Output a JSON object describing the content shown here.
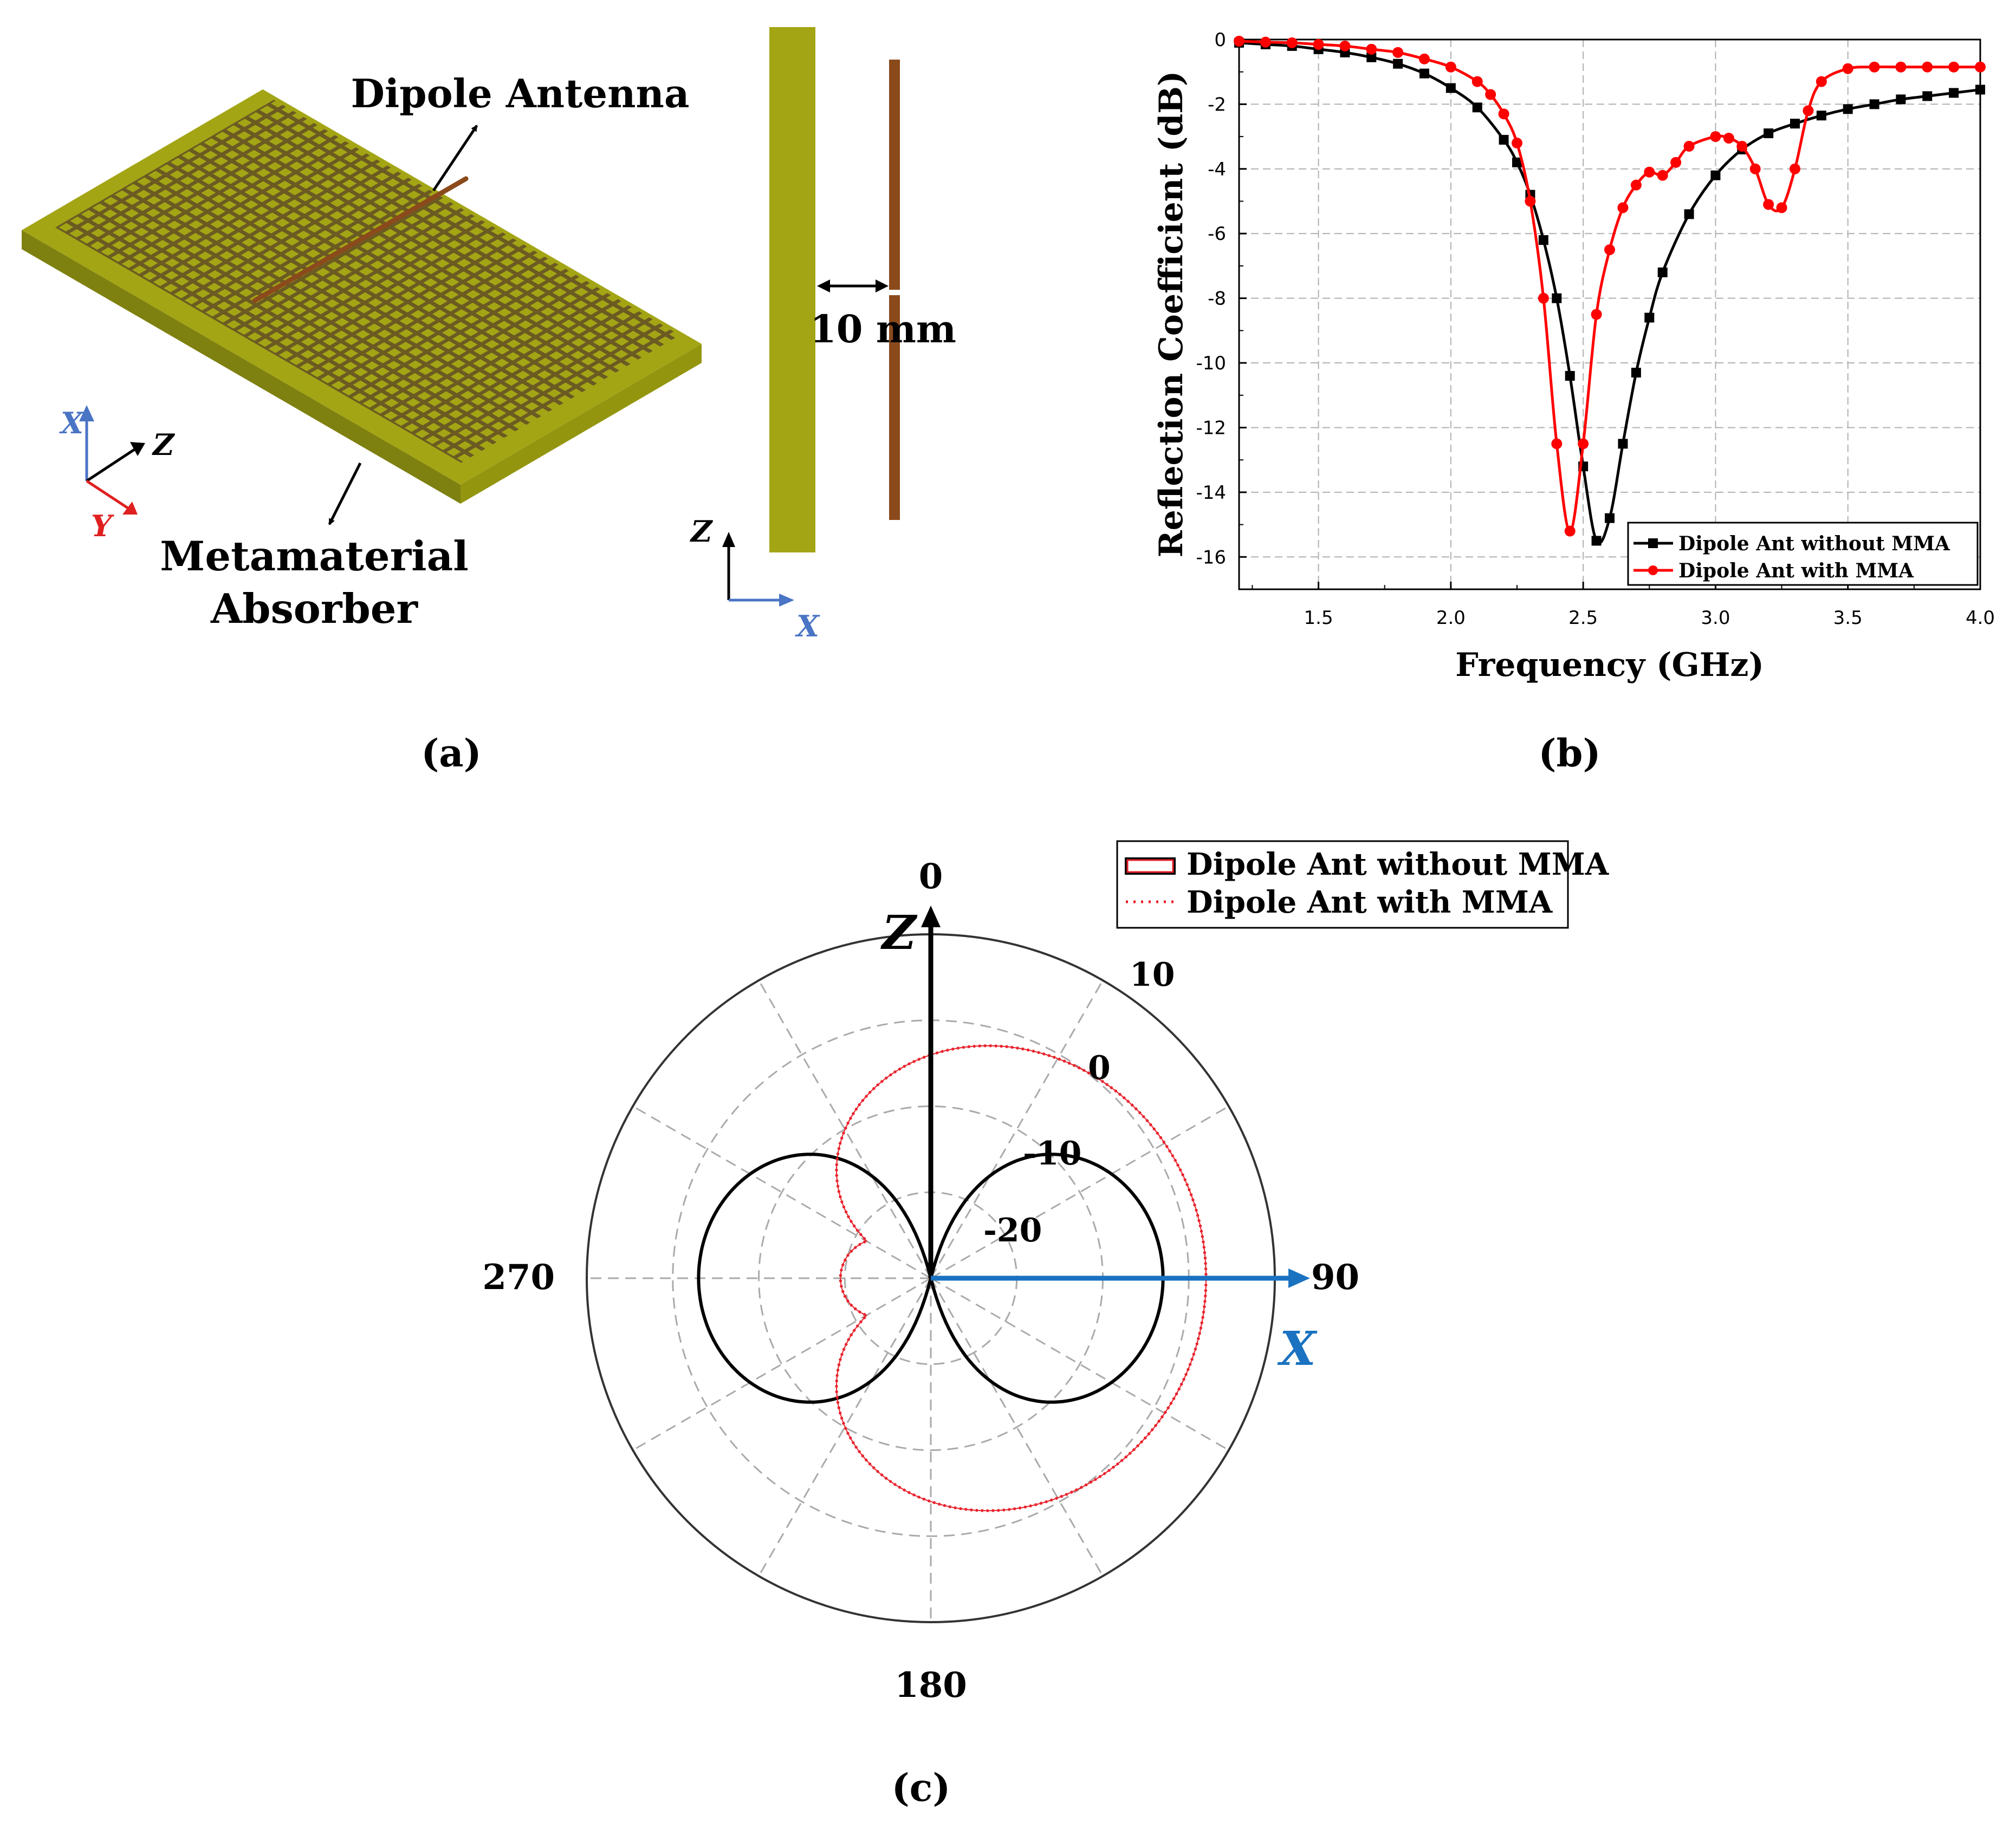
{
  "panel_a": {
    "caption": "(a)",
    "label_dipole": "Dipole Antenna",
    "label_mma_line1": "Metamaterial",
    "label_mma_line2": "Absorber",
    "gap_label": "10 mm",
    "axes_3d": {
      "x": "X",
      "z": "Z",
      "y": "Y"
    },
    "axes_side": {
      "z": "Z",
      "x": "X"
    },
    "colors": {
      "absorber": "#a3a515",
      "absorber_dark": "#7e800f",
      "cell": "#6b5a22",
      "dipole": "#8b4a1c",
      "axis_blue": "#4a74c4",
      "axis_red": "#e02020"
    }
  },
  "panel_b": {
    "caption": "(b)",
    "chart_data": {
      "type": "line",
      "xlabel": "Frequency (GHz)",
      "ylabel": "Reflection Coefficient (dB)",
      "xlim": [
        1.2,
        4.0
      ],
      "ylim": [
        -17,
        0
      ],
      "xticks": [
        1.5,
        2.0,
        2.5,
        3.0,
        3.5,
        4.0
      ],
      "xtick_labels": [
        "1.5",
        "2.0",
        "2.5",
        "3.0",
        "3.5",
        "4.0"
      ],
      "yticks": [
        0,
        -2,
        -4,
        -6,
        -8,
        -10,
        -12,
        -14,
        -16
      ],
      "ytick_labels": [
        "0",
        "-2",
        "-4",
        "-6",
        "-8",
        "-10",
        "-12",
        "-14",
        "-16"
      ],
      "grid": true,
      "legend_position": "bottom-right",
      "series": [
        {
          "name": "Dipole Ant without MMA",
          "color": "#000000",
          "marker": "square",
          "x": [
            1.2,
            1.3,
            1.4,
            1.5,
            1.6,
            1.7,
            1.8,
            1.9,
            2.0,
            2.1,
            2.2,
            2.25,
            2.3,
            2.35,
            2.4,
            2.45,
            2.5,
            2.55,
            2.6,
            2.65,
            2.7,
            2.75,
            2.8,
            2.9,
            3.0,
            3.1,
            3.2,
            3.3,
            3.4,
            3.5,
            3.6,
            3.7,
            3.8,
            3.9,
            4.0
          ],
          "y": [
            -0.1,
            -0.15,
            -0.2,
            -0.3,
            -0.4,
            -0.55,
            -0.75,
            -1.05,
            -1.5,
            -2.1,
            -3.1,
            -3.8,
            -4.8,
            -6.2,
            -8.0,
            -10.4,
            -13.2,
            -15.5,
            -14.8,
            -12.5,
            -10.3,
            -8.6,
            -7.2,
            -5.4,
            -4.2,
            -3.4,
            -2.9,
            -2.6,
            -2.35,
            -2.15,
            -2.0,
            -1.85,
            -1.75,
            -1.65,
            -1.55
          ]
        },
        {
          "name": "Dipole Ant with MMA",
          "color": "#ff0000",
          "marker": "circle",
          "x": [
            1.2,
            1.3,
            1.4,
            1.5,
            1.6,
            1.7,
            1.8,
            1.9,
            2.0,
            2.1,
            2.15,
            2.2,
            2.25,
            2.3,
            2.35,
            2.4,
            2.45,
            2.5,
            2.55,
            2.6,
            2.65,
            2.7,
            2.75,
            2.8,
            2.85,
            2.9,
            3.0,
            3.05,
            3.1,
            3.15,
            3.2,
            3.25,
            3.3,
            3.35,
            3.4,
            3.5,
            3.6,
            3.7,
            3.8,
            3.9,
            4.0
          ],
          "y": [
            -0.05,
            -0.08,
            -0.1,
            -0.15,
            -0.2,
            -0.3,
            -0.4,
            -0.6,
            -0.85,
            -1.3,
            -1.7,
            -2.3,
            -3.2,
            -5.0,
            -8.0,
            -12.5,
            -15.2,
            -12.5,
            -8.5,
            -6.5,
            -5.2,
            -4.5,
            -4.1,
            -4.2,
            -3.8,
            -3.3,
            -3.0,
            -3.05,
            -3.3,
            -4.0,
            -5.1,
            -5.2,
            -4.0,
            -2.2,
            -1.3,
            -0.9,
            -0.85,
            -0.85,
            -0.85,
            -0.85,
            -0.85
          ]
        }
      ]
    }
  },
  "panel_c": {
    "caption": "(c)",
    "chart_data": {
      "type": "polar",
      "angle_labels": [
        "0",
        "90",
        "180",
        "270"
      ],
      "radial_labels": [
        "10",
        "0",
        "-10",
        "-20"
      ],
      "rlim": [
        -30,
        10
      ],
      "radial_rings": [
        -20,
        -10,
        0,
        10
      ],
      "grid": true,
      "legend_position": "top-right",
      "axis_labels": {
        "z": "Z",
        "x": "X"
      },
      "series": [
        {
          "name": "Dipole Ant without MMA",
          "color": "#000000",
          "style": "solid",
          "pattern": "figure-eight, max ≈ -3 dB at 90° and 270°, null at 0° and 180°",
          "angles": [
            0,
            30,
            60,
            90,
            120,
            150,
            180,
            210,
            240,
            270,
            300,
            330
          ],
          "gain_db": [
            -30,
            -14,
            -5.5,
            -3.0,
            -5.5,
            -14,
            -30,
            -14,
            -5.5,
            -3.0,
            -5.5,
            -14
          ]
        },
        {
          "name": "Dipole Ant with MMA",
          "color": "#e8202a",
          "style": "dotted",
          "pattern": "cardioid toward +X, max ≈ +2 dB at 90°, back lobe ≈ -20 dB at 270°",
          "angles": [
            0,
            30,
            60,
            90,
            120,
            150,
            180,
            210,
            240,
            270,
            300,
            330
          ],
          "gain_db": [
            -28,
            -4,
            1.0,
            2.0,
            1.0,
            -4,
            -28,
            -26,
            -22,
            -19.5,
            -22,
            -26
          ]
        }
      ]
    }
  }
}
